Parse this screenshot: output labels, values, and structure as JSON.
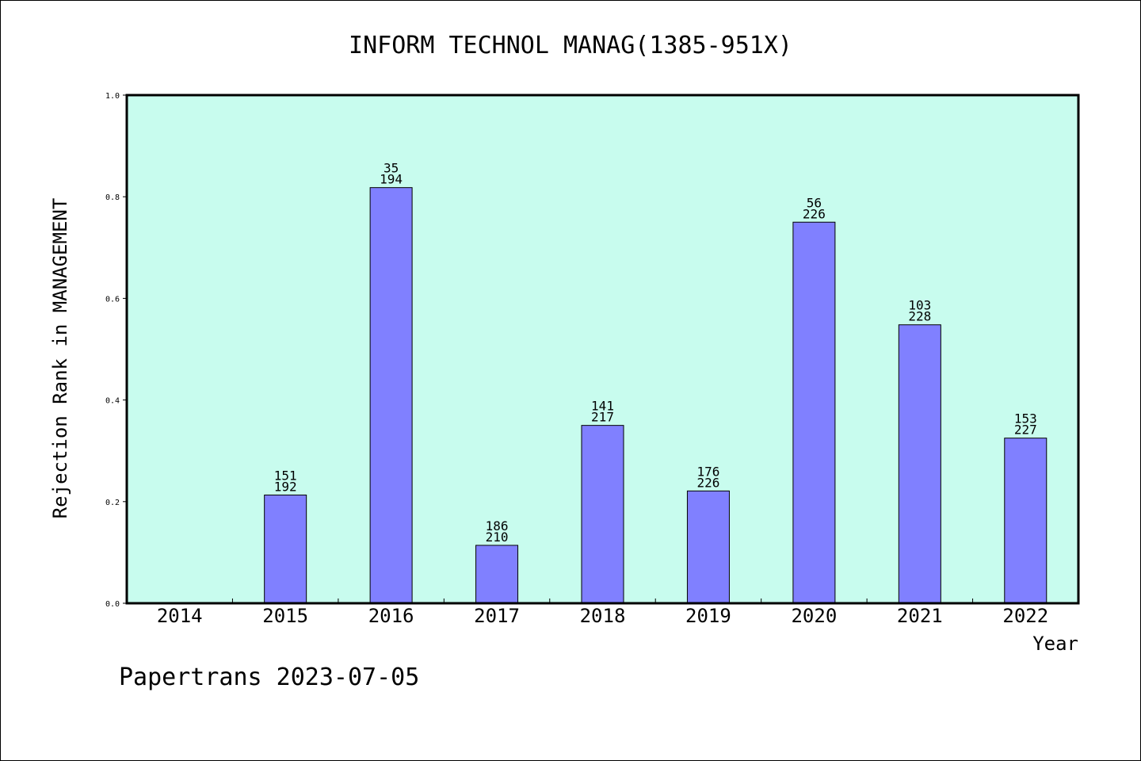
{
  "chart_data": {
    "type": "bar",
    "title": "INFORM TECHNOL MANAG(1385-951X)",
    "xlabel": "Year",
    "ylabel": "Rejection Rank in MANAGEMENT",
    "ylim": [
      0,
      1.0
    ],
    "yticks": [
      "0.0",
      "0.2",
      "0.4",
      "0.6",
      "0.8",
      "1.0"
    ],
    "categories": [
      "2014",
      "2015",
      "2016",
      "2017",
      "2018",
      "2019",
      "2020",
      "2021",
      "2022"
    ],
    "values": [
      null,
      0.213,
      0.818,
      0.114,
      0.35,
      0.221,
      0.75,
      0.548,
      0.325
    ],
    "labels": [
      null,
      [
        "151",
        "192"
      ],
      [
        "35",
        "194"
      ],
      [
        "186",
        "210"
      ],
      [
        "141",
        "217"
      ],
      [
        "176",
        "226"
      ],
      [
        "56",
        "226"
      ],
      [
        "103",
        "228"
      ],
      [
        "153",
        "227"
      ]
    ],
    "grid": false,
    "colors": {
      "plot_bg": "#c8fcee",
      "bar": "#8080ff"
    }
  },
  "footer": "Papertrans 2023-07-05"
}
